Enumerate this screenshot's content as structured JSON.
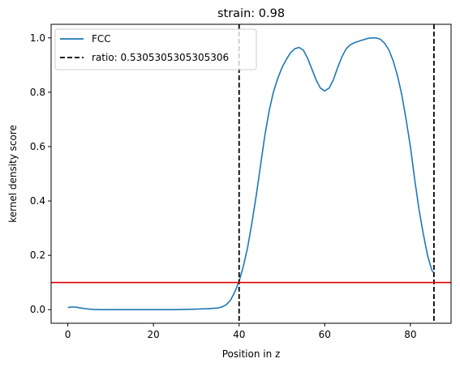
{
  "chart_data": {
    "type": "line",
    "title": "strain: 0.98",
    "xlabel": "Position in z",
    "ylabel": "kernel density score",
    "xlim": [
      -3.9,
      89.5
    ],
    "ylim": [
      -0.05,
      1.05
    ],
    "xticks": [
      0,
      20,
      40,
      60,
      80
    ],
    "yticks": [
      0.0,
      0.2,
      0.4,
      0.6,
      0.8,
      1.0
    ],
    "xtick_labels": [
      "0",
      "20",
      "40",
      "60",
      "80"
    ],
    "ytick_labels": [
      "0.0",
      "0.2",
      "0.4",
      "0.6",
      "0.8",
      "1.0"
    ],
    "grid": false,
    "legend_position": "upper-left",
    "series": [
      {
        "name": "FCC",
        "color": "#1f77b4",
        "x": [
          0,
          1,
          2,
          3,
          4,
          5,
          6,
          8,
          10,
          15,
          20,
          25,
          30,
          33,
          35,
          36,
          37,
          38,
          39,
          40,
          41,
          42,
          43,
          44,
          45,
          46,
          47,
          48,
          49,
          50,
          51,
          52,
          53,
          54,
          55,
          56,
          57,
          58,
          59,
          60,
          61,
          62,
          63,
          64,
          65,
          66,
          67,
          68,
          69,
          70,
          71,
          72,
          73,
          74,
          75,
          76,
          77,
          78,
          79,
          80,
          81,
          82,
          83,
          84,
          85,
          85.5
        ],
        "y": [
          0.008,
          0.01,
          0.009,
          0.006,
          0.004,
          0.002,
          0.001,
          0.0,
          0.0,
          0.0,
          0.0,
          0.0,
          0.002,
          0.004,
          0.006,
          0.01,
          0.018,
          0.035,
          0.065,
          0.105,
          0.16,
          0.23,
          0.32,
          0.42,
          0.53,
          0.64,
          0.73,
          0.8,
          0.85,
          0.89,
          0.92,
          0.945,
          0.96,
          0.965,
          0.955,
          0.925,
          0.885,
          0.845,
          0.815,
          0.805,
          0.815,
          0.845,
          0.89,
          0.93,
          0.96,
          0.975,
          0.983,
          0.988,
          0.993,
          0.998,
          1.0,
          1.0,
          0.995,
          0.98,
          0.955,
          0.915,
          0.86,
          0.79,
          0.7,
          0.6,
          0.48,
          0.37,
          0.28,
          0.2,
          0.145,
          0.135
        ]
      }
    ],
    "vlines": [
      {
        "name": "ratio: 0.5305305305305306",
        "x": 40,
        "color": "#000000",
        "style": "dashed"
      },
      {
        "name": "",
        "x": 85.5,
        "color": "#000000",
        "style": "dashed"
      }
    ],
    "hlines": [
      {
        "y": 0.1,
        "color": "#e00000"
      }
    ]
  }
}
